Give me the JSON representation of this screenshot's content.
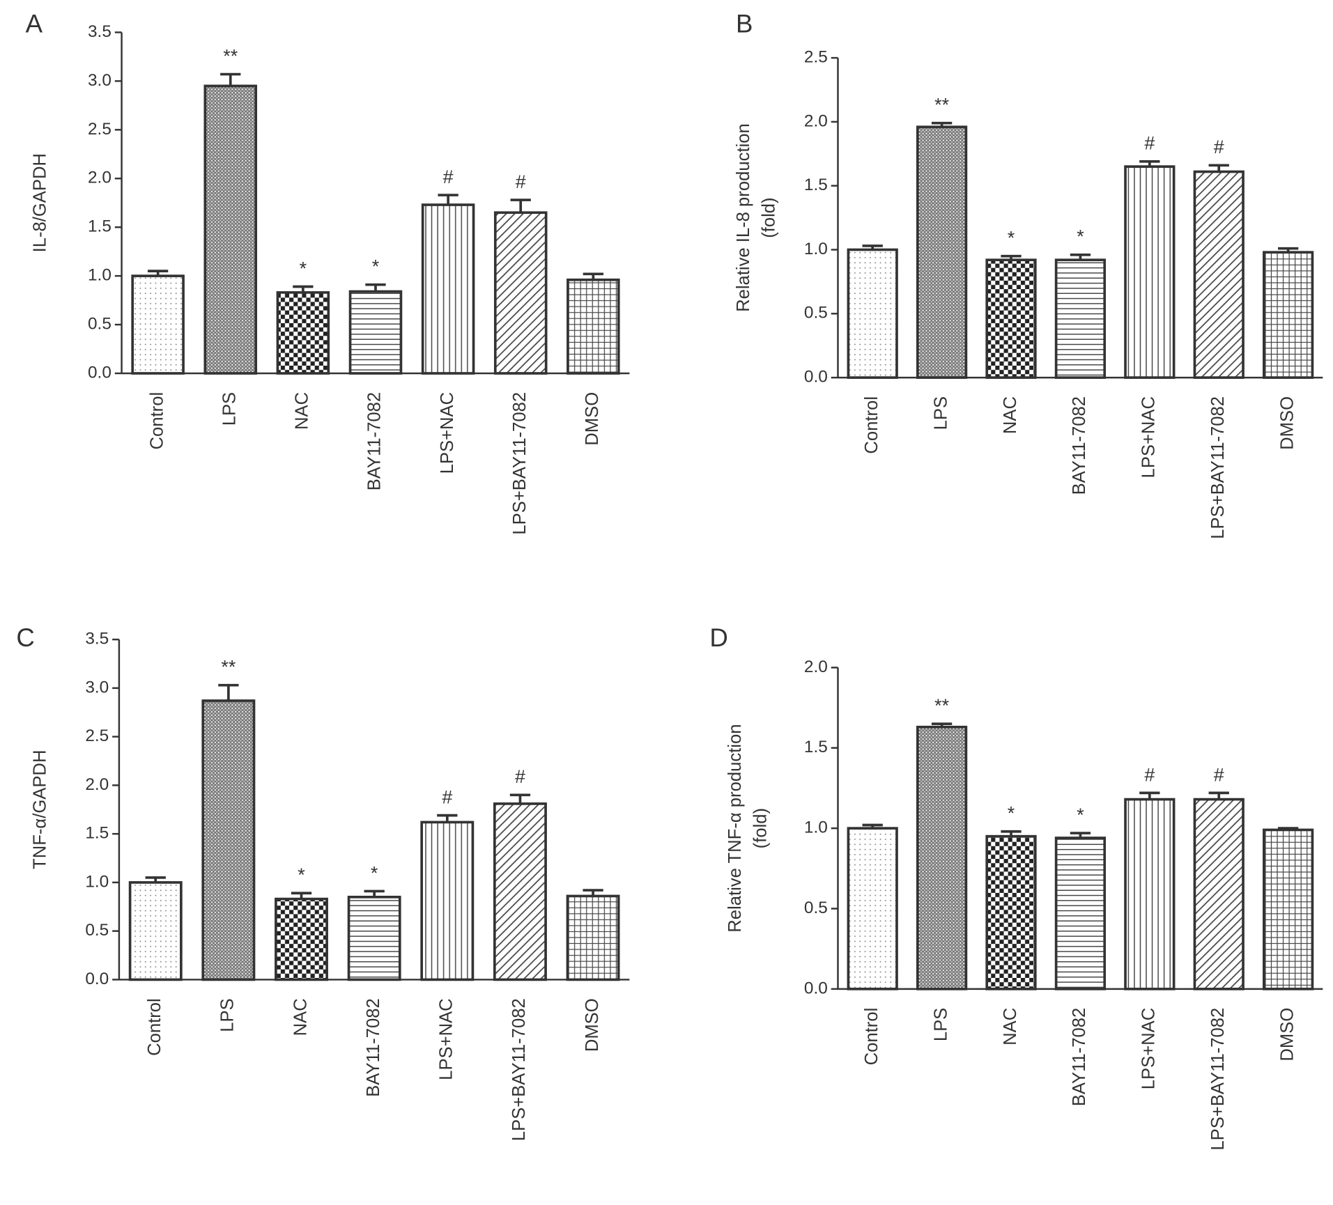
{
  "chart_data": [
    {
      "type": "bar",
      "panel": "A",
      "ylabel": [
        "IL-8/GAPDH"
      ],
      "categories": [
        "Control",
        "LPS",
        "NAC",
        "BAY11-7082",
        "LPS+NAC",
        "LPS+BAY11-7082",
        "DMSO"
      ],
      "values": [
        1.0,
        2.95,
        0.83,
        0.84,
        1.73,
        1.65,
        0.96
      ],
      "errors": [
        0.05,
        0.12,
        0.06,
        0.07,
        0.1,
        0.13,
        0.06
      ],
      "annotations": [
        null,
        "**",
        "*",
        "*",
        "#",
        "#",
        null
      ],
      "ylim": [
        0,
        3.5
      ],
      "yticks": [
        {
          "value": 0,
          "label": "0.0"
        },
        0.5,
        {
          "value": 1,
          "label": "1.0"
        },
        1.5,
        {
          "value": 2,
          "label": "2.0"
        },
        2.5,
        {
          "value": 3,
          "label": "3.0"
        },
        3.5
      ]
    },
    {
      "type": "bar",
      "panel": "B",
      "ylabel": [
        "Relative IL-8 production",
        "(fold)"
      ],
      "categories": [
        "Control",
        "LPS",
        "NAC",
        "BAY11-7082",
        "LPS+NAC",
        "LPS+BAY11-7082",
        "DMSO"
      ],
      "values": [
        1.0,
        1.96,
        0.92,
        0.92,
        1.65,
        1.61,
        0.98
      ],
      "errors": [
        0.03,
        0.03,
        0.03,
        0.04,
        0.04,
        0.05,
        0.03
      ],
      "annotations": [
        null,
        "**",
        "*",
        "*",
        "#",
        "#",
        null
      ],
      "ylim": [
        0,
        2.5
      ],
      "yticks": [
        {
          "value": 0,
          "label": "0.0"
        },
        0.5,
        {
          "value": 1,
          "label": "1.0"
        },
        1.5,
        {
          "value": 2,
          "label": "2.0"
        },
        2.5
      ]
    },
    {
      "type": "bar",
      "panel": "C",
      "ylabel": [
        "TNF-α/GAPDH"
      ],
      "categories": [
        "Control",
        "LPS",
        "NAC",
        "BAY11-7082",
        "LPS+NAC",
        "LPS+BAY11-7082",
        "DMSO"
      ],
      "values": [
        1.0,
        2.87,
        0.83,
        0.85,
        1.62,
        1.81,
        0.86
      ],
      "errors": [
        0.05,
        0.16,
        0.06,
        0.06,
        0.07,
        0.09,
        0.06
      ],
      "annotations": [
        null,
        "**",
        "*",
        "*",
        "#",
        "#",
        null
      ],
      "ylim": [
        0,
        3.5
      ],
      "yticks": [
        {
          "value": 0,
          "label": "0.0"
        },
        0.5,
        {
          "value": 1,
          "label": "1.0"
        },
        1.5,
        {
          "value": 2,
          "label": "2.0"
        },
        2.5,
        {
          "value": 3,
          "label": "3.0"
        },
        3.5
      ]
    },
    {
      "type": "bar",
      "panel": "D",
      "ylabel": [
        "Relative TNF-α production",
        "(fold)"
      ],
      "categories": [
        "Control",
        "LPS",
        "NAC",
        "BAY11-7082",
        "LPS+NAC",
        "LPS+BAY11-7082",
        "DMSO"
      ],
      "values": [
        1.0,
        1.63,
        0.95,
        0.94,
        1.18,
        1.18,
        0.99
      ],
      "errors": [
        0.02,
        0.02,
        0.03,
        0.03,
        0.04,
        0.04,
        0.01
      ],
      "annotations": [
        null,
        "**",
        "*",
        "*",
        "#",
        "#",
        null
      ],
      "ylim": [
        0,
        2.0
      ],
      "yticks": [
        {
          "value": 0,
          "label": "0.0"
        },
        0.5,
        {
          "value": 1,
          "label": "1.0"
        },
        1.5,
        {
          "value": 2,
          "label": "2.0"
        }
      ]
    }
  ]
}
